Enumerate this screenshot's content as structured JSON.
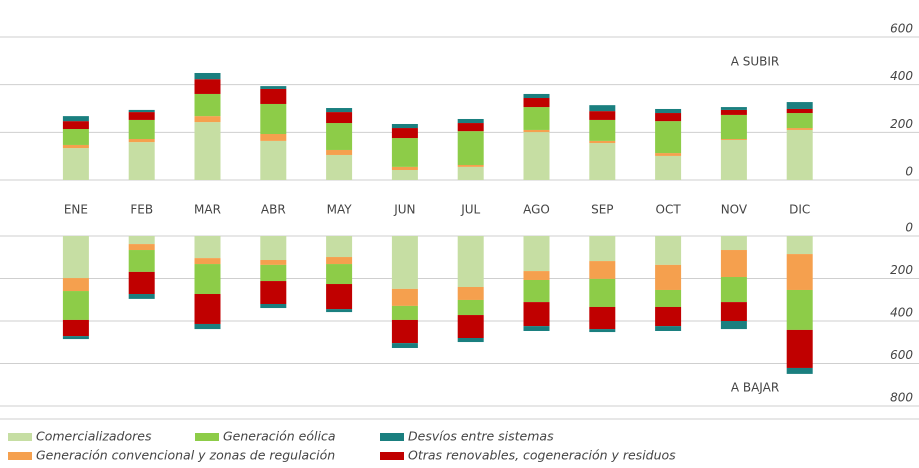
{
  "chart_data": [
    {
      "type": "bar",
      "stacked": true,
      "annotation": "A SUBIR",
      "categories": [
        "ENE",
        "FEB",
        "MAR",
        "ABR",
        "MAY",
        "JUN",
        "JUL",
        "AGO",
        "SEP",
        "OCT",
        "NOV",
        "DIC"
      ],
      "ylim": [
        0,
        600
      ],
      "yticks": [
        0,
        200,
        400,
        600
      ],
      "grid": true,
      "series": [
        {
          "name": "Comercializadores",
          "color": "#c6dea3",
          "values": [
            134,
            159,
            243,
            164,
            105,
            42,
            55,
            201,
            155,
            101,
            168,
            210
          ]
        },
        {
          "name": "Generación convencional y zonas de regulación",
          "color": "#f5a04e",
          "values": [
            13,
            13,
            25,
            29,
            21,
            13,
            8,
            9,
            9,
            12,
            4,
            8
          ]
        },
        {
          "name": "Generación eólica",
          "color": "#8dcc48",
          "values": [
            67,
            80,
            93,
            126,
            113,
            121,
            142,
            96,
            88,
            134,
            101,
            63
          ]
        },
        {
          "name": "Otras renovables, cogeneración y residuos",
          "color": "#c00000",
          "values": [
            33,
            33,
            62,
            63,
            46,
            42,
            34,
            38,
            37,
            34,
            21,
            17
          ]
        },
        {
          "name": "Desvíos entre sistemas",
          "color": "#1a7f7f",
          "values": [
            21,
            9,
            26,
            12,
            17,
            17,
            17,
            17,
            25,
            17,
            12,
            29
          ]
        }
      ]
    },
    {
      "type": "bar",
      "stacked": true,
      "annotation": "A BAJAR",
      "ylim": [
        800,
        0
      ],
      "yticks": [
        0,
        200,
        400,
        600,
        800
      ],
      "grid": true,
      "series": [
        {
          "color": "#c6dea3",
          "values": [
            198,
            38,
            104,
            113,
            99,
            249,
            240,
            165,
            118,
            136,
            66,
            85
          ]
        },
        {
          "color": "#f5a04e",
          "values": [
            61,
            28,
            28,
            23,
            33,
            80,
            61,
            42,
            84,
            118,
            127,
            169
          ]
        },
        {
          "color": "#8dcc48",
          "values": [
            136,
            103,
            141,
            76,
            94,
            66,
            71,
            104,
            132,
            80,
            118,
            188
          ]
        },
        {
          "color": "#c00000",
          "values": [
            76,
            104,
            141,
            108,
            118,
            109,
            108,
            113,
            104,
            90,
            89,
            179
          ]
        },
        {
          "color": "#1a7f7f",
          "values": [
            14,
            23,
            24,
            19,
            14,
            23,
            19,
            23,
            14,
            23,
            38,
            28
          ]
        }
      ]
    }
  ]
}
